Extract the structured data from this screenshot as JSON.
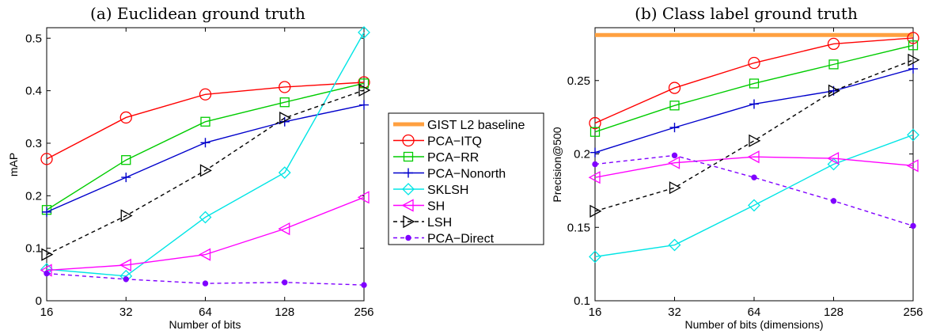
{
  "chart_data": [
    {
      "type": "line",
      "title": "(a) Euclidean ground truth",
      "xlabel": "Number of bits",
      "ylabel": "mAP",
      "x": [
        16,
        32,
        64,
        128,
        256
      ],
      "x_tick_labels": [
        "16",
        "32",
        "64",
        "128",
        "256"
      ],
      "x_scale": "log2",
      "xlim": [
        16,
        256
      ],
      "ylim": [
        0,
        0.52
      ],
      "y_ticks": [
        0,
        0.1,
        0.2,
        0.3,
        0.4,
        0.5
      ],
      "y_tick_labels": [
        "0",
        "0.1",
        "0.2",
        "0.3",
        "0.4",
        "0.5"
      ],
      "grid": false,
      "series": [
        {
          "name": "PCA−ITQ",
          "color": "#ff0000",
          "marker": "circle",
          "dash": "solid",
          "values": [
            0.27,
            0.349,
            0.393,
            0.407,
            0.416
          ]
        },
        {
          "name": "PCA−RR",
          "color": "#00cc00",
          "marker": "square",
          "dash": "solid",
          "values": [
            0.173,
            0.268,
            0.341,
            0.378,
            0.414
          ]
        },
        {
          "name": "PCA−Nonorth",
          "color": "#0000cc",
          "marker": "plus",
          "dash": "solid",
          "values": [
            0.169,
            0.235,
            0.301,
            0.341,
            0.373
          ]
        },
        {
          "name": "SKLSH",
          "color": "#00e5e5",
          "marker": "diamond",
          "dash": "solid",
          "values": [
            0.06,
            0.047,
            0.159,
            0.244,
            0.511
          ]
        },
        {
          "name": "SH",
          "color": "#ff00ff",
          "marker": "triangle-left",
          "dash": "solid",
          "values": [
            0.058,
            0.068,
            0.088,
            0.137,
            0.197
          ]
        },
        {
          "name": "LSH",
          "color": "#000000",
          "marker": "triangle-right",
          "dash": "dashed",
          "values": [
            0.088,
            0.162,
            0.248,
            0.348,
            0.401
          ]
        },
        {
          "name": "PCA−Direct",
          "color": "#7f00ff",
          "marker": "dot",
          "dash": "dashed",
          "values": [
            0.052,
            0.041,
            0.033,
            0.035,
            0.03
          ]
        }
      ]
    },
    {
      "type": "line",
      "title": "(b) Class label ground truth",
      "xlabel": "Number of bits (dimensions)",
      "ylabel": "Precision@500",
      "x": [
        16,
        32,
        64,
        128,
        256
      ],
      "x_tick_labels": [
        "16",
        "32",
        "64",
        "128",
        "256"
      ],
      "x_scale": "log2",
      "xlim": [
        16,
        256
      ],
      "ylim": [
        0.1,
        0.286
      ],
      "y_ticks": [
        0.1,
        0.15,
        0.2,
        0.25
      ],
      "y_tick_labels": [
        "0.1",
        "0.15",
        "0.2",
        "0.25"
      ],
      "grid": false,
      "baseline": {
        "name": "GIST L2 baseline",
        "color": "#ffa040",
        "value": 0.281
      },
      "series": [
        {
          "name": "PCA−ITQ",
          "color": "#ff0000",
          "marker": "circle",
          "dash": "solid",
          "values": [
            0.221,
            0.245,
            0.262,
            0.275,
            0.279
          ]
        },
        {
          "name": "PCA−RR",
          "color": "#00cc00",
          "marker": "square",
          "dash": "solid",
          "values": [
            0.215,
            0.233,
            0.248,
            0.261,
            0.274
          ]
        },
        {
          "name": "PCA−Nonorth",
          "color": "#0000cc",
          "marker": "plus",
          "dash": "solid",
          "values": [
            0.201,
            0.218,
            0.234,
            0.243,
            0.258
          ]
        },
        {
          "name": "SKLSH",
          "color": "#00e5e5",
          "marker": "diamond",
          "dash": "solid",
          "values": [
            0.13,
            0.138,
            0.165,
            0.193,
            0.213
          ]
        },
        {
          "name": "SH",
          "color": "#ff00ff",
          "marker": "triangle-left",
          "dash": "solid",
          "values": [
            0.184,
            0.194,
            0.198,
            0.197,
            0.192
          ]
        },
        {
          "name": "LSH",
          "color": "#000000",
          "marker": "triangle-right",
          "dash": "dashed",
          "values": [
            0.161,
            0.177,
            0.209,
            0.243,
            0.264
          ]
        },
        {
          "name": "PCA−Direct",
          "color": "#7f00ff",
          "marker": "dot",
          "dash": "dashed",
          "values": [
            0.193,
            0.199,
            0.184,
            0.168,
            0.151
          ]
        }
      ]
    }
  ],
  "legend": {
    "placement": "center-between-panels",
    "entries": [
      {
        "label": "GIST L2 baseline",
        "color": "#ffa040",
        "marker": "none",
        "dash": "solid",
        "thick": true
      },
      {
        "label": "PCA−ITQ",
        "color": "#ff0000",
        "marker": "circle",
        "dash": "solid"
      },
      {
        "label": "PCA−RR",
        "color": "#00cc00",
        "marker": "square",
        "dash": "solid"
      },
      {
        "label": "PCA−Nonorth",
        "color": "#0000cc",
        "marker": "plus",
        "dash": "solid"
      },
      {
        "label": "SKLSH",
        "color": "#00e5e5",
        "marker": "diamond",
        "dash": "solid"
      },
      {
        "label": "SH",
        "color": "#ff00ff",
        "marker": "triangle-left",
        "dash": "solid"
      },
      {
        "label": "LSH",
        "color": "#000000",
        "marker": "triangle-right",
        "dash": "dashed"
      },
      {
        "label": "PCA−Direct",
        "color": "#7f00ff",
        "marker": "dot",
        "dash": "dashed"
      }
    ]
  }
}
